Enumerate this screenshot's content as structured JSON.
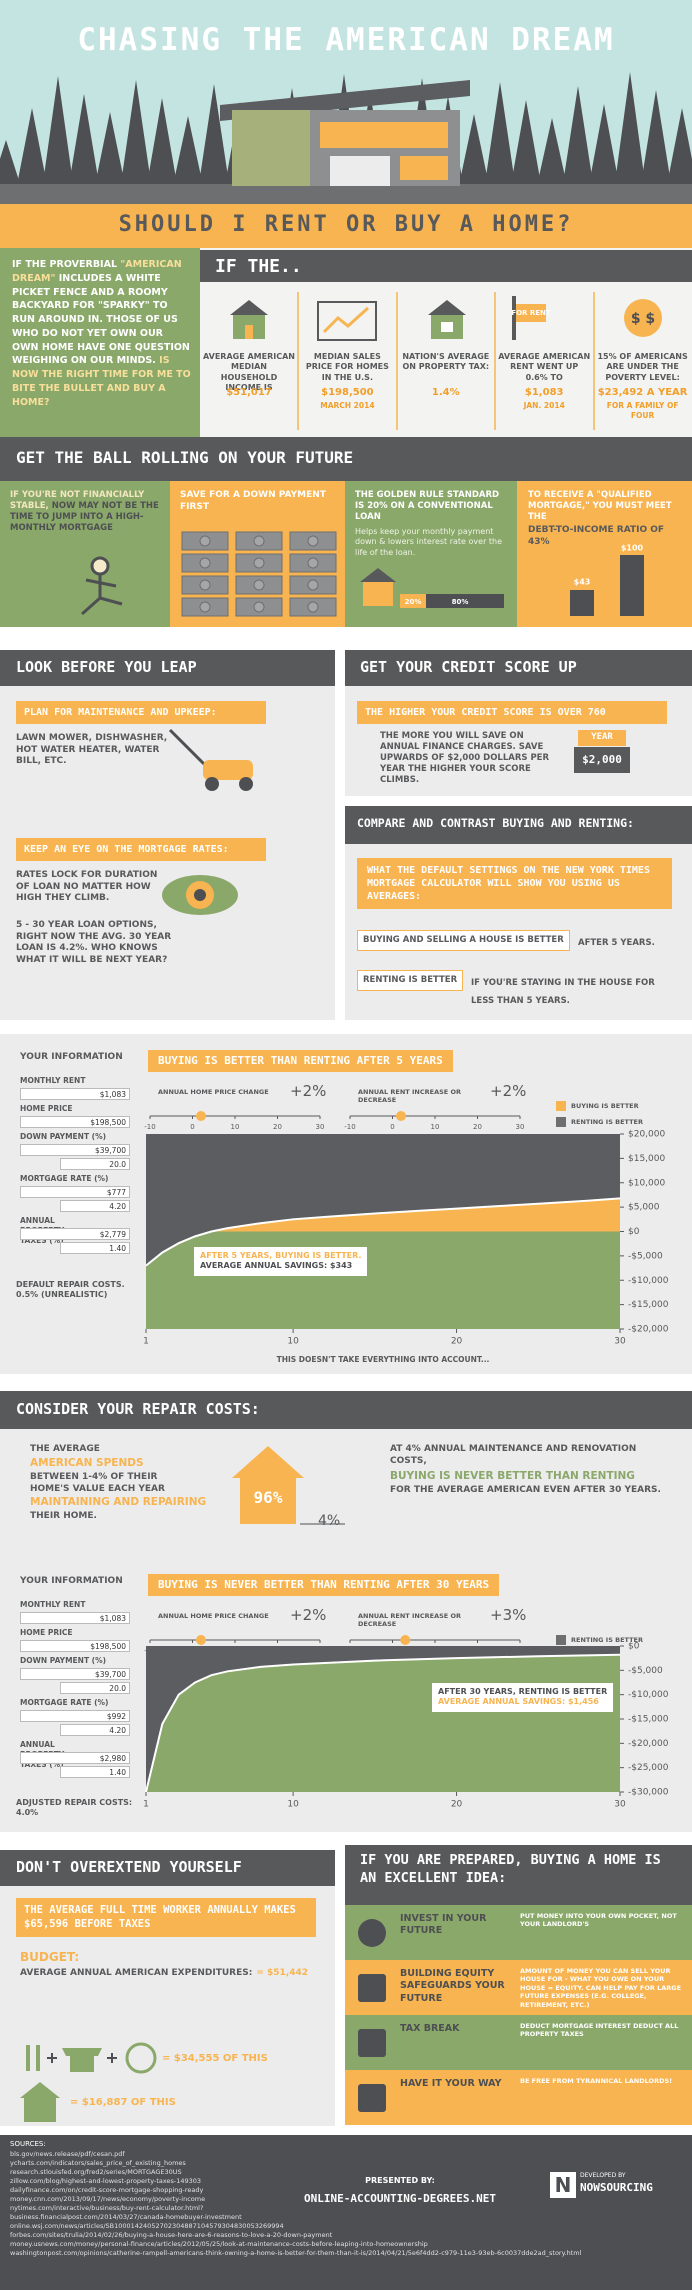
{
  "header": {
    "title": "CHASING THE AMERICAN DREAM",
    "question": "SHOULD I RENT OR BUY A HOME?"
  },
  "intro": {
    "lead": "IF THE PROVERBIAL ",
    "dream": "\"AMERICAN DREAM\"",
    "body": " INCLUDES A WHITE PICKET FENCE AND A ROOMY BACKYARD FOR \"SPARKY\" TO RUN AROUND IN. THOSE OF US WHO DO NOT YET OWN OUR OWN HOME HAVE ONE QUESTION WEIGHING ON OUR MINDS. ",
    "question": "IS NOW THE RIGHT TIME FOR ME TO BITE THE BULLET AND BUY A HOME?"
  },
  "if_the": {
    "title": "IF THE..",
    "rent_sign": "FOR RENT",
    "poverty_icon": "$ $",
    "stats": [
      {
        "label": "AVERAGE AMERICAN MEDIAN HOUSEHOLD INCOME IS",
        "value": "$51,017"
      },
      {
        "label": "MEDIAN SALES PRICE FOR HOMES IN THE U.S.",
        "value": "$198,500",
        "note": "MARCH 2014"
      },
      {
        "label": "NATION'S AVERAGE ON PROPERTY TAX:",
        "value": "1.4%"
      },
      {
        "label": "AVERAGE AMERICAN RENT WENT UP 0.6% TO",
        "value": "$1,083",
        "note": "JAN. 2014"
      },
      {
        "label": "15% OF AMERICANS ARE UNDER THE POVERTY LEVEL:",
        "value": "$23,492 A YEAR",
        "note": "FOR A FAMILY OF FOUR"
      }
    ]
  },
  "ball_rolling": {
    "title": "GET THE BALL ROLLING ON YOUR FUTURE",
    "stable_highlight": "IF YOU'RE NOT FINANCIALLY STABLE,",
    "stable_text": " NOW MAY NOT BE THE TIME TO JUMP INTO A HIGH-MONTHLY MORTGAGE",
    "save": "SAVE FOR A DOWN PAYMENT FIRST",
    "golden_rule": "THE GOLDEN RULE STANDARD IS 20% ON A CONVENTIONAL LOAN",
    "golden_note": "Helps keep your monthly payment down & lowers interest rate over the life of the loan.",
    "down_label": "20%",
    "loan_label": "80%",
    "qualified": "TO RECEIVE A \"QUALIFIED MORTGAGE,\" YOU MUST MEET THE",
    "ratio": "DEBT-TO-INCOME RATIO OF 43%",
    "debt_label": "$43",
    "income_label": "$100"
  },
  "leap": {
    "title": "LOOK BEFORE YOU LEAP",
    "maintenance_title": "PLAN FOR MAINTENANCE AND UPKEEP:",
    "maintenance_text": "LAWN MOWER, DISHWASHER, HOT WATER HEATER, WATER BILL, ETC.",
    "rates_title": "KEEP AN EYE ON THE MORTGAGE RATES:",
    "rates_text": "RATES LOCK FOR DURATION OF LOAN NO MATTER HOW HIGH THEY CLIMB.",
    "options_text": "5 - 30 YEAR LOAN OPTIONS, RIGHT NOW THE AVG. 30 YEAR LOAN IS 4.2%. WHO KNOWS WHAT IT WILL BE NEXT YEAR?"
  },
  "credit": {
    "title": "GET YOUR CREDIT SCORE UP",
    "banner": "THE HIGHER YOUR CREDIT SCORE IS OVER 760",
    "text": "THE MORE YOU WILL SAVE ON ANNUAL FINANCE CHARGES. SAVE UPWARDS OF $2,000 DOLLARS PER YEAR THE HIGHER YOUR SCORE CLIMBS.",
    "badge_tab": "YEAR",
    "badge_value": "$2,000"
  },
  "compare": {
    "title": "COMPARE AND CONTRAST BUYING AND RENTING:",
    "banner": "WHAT THE DEFAULT SETTINGS ON THE NEW YORK TIMES MORTGAGE CALCULATOR WILL SHOW YOU USING US AVERAGES:",
    "items": [
      {
        "tag": "BUYING AND SELLING A HOUSE IS BETTER",
        "text": "AFTER 5 YEARS."
      },
      {
        "tag": "RENTING IS BETTER",
        "text": "IF YOU'RE STAYING IN THE HOUSE FOR LESS THAN 5 YEARS."
      }
    ]
  },
  "chart_data": [
    {
      "type": "area",
      "title": "BUYING IS BETTER THAN RENTING AFTER 5 YEARS",
      "inputs_title": "YOUR INFORMATION",
      "inputs": [
        {
          "label": "MONTHLY RENT",
          "values": [
            "$1,083"
          ]
        },
        {
          "label": "HOME PRICE",
          "values": [
            "$198,500"
          ]
        },
        {
          "label": "DOWN PAYMENT (%)",
          "values": [
            "$39,700",
            "20.0"
          ]
        },
        {
          "label": "MORTGAGE RATE (%)",
          "values": [
            "$777",
            "4.20"
          ]
        },
        {
          "label": "ANNUAL PROPERTY TAXES (%)",
          "values": [
            "$2,779",
            "1.40"
          ]
        }
      ],
      "repair_note": "DEFAULT REPAIR COSTS. 0.5% (UNREALISTIC)",
      "sliders": [
        {
          "label": "ANNUAL HOME PRICE CHANGE",
          "value": 2,
          "value_label": "+2%",
          "ticks": [
            -10,
            0,
            10,
            20,
            30
          ]
        },
        {
          "label": "ANNUAL RENT INCREASE OR DECREASE",
          "value": 2,
          "value_label": "+2%",
          "ticks": [
            -10,
            0,
            10,
            20,
            30
          ]
        }
      ],
      "legend": [
        {
          "name": "BUYING IS BETTER",
          "color": "#f8b450"
        },
        {
          "name": "RENTING IS BETTER",
          "color": "#6e6f71"
        }
      ],
      "x": [
        1,
        2,
        3,
        4,
        5,
        6,
        8,
        10,
        12,
        15,
        18,
        20,
        22,
        25,
        28,
        30
      ],
      "values": [
        -7000,
        -4300,
        -2400,
        -1000,
        0,
        700,
        1700,
        2500,
        3000,
        3700,
        4300,
        4700,
        5100,
        5700,
        6300,
        6800
      ],
      "area_color": "#8ba86b",
      "line_color": "#ffffff",
      "xlim": [
        1,
        30
      ],
      "xticks": [
        1,
        10,
        20,
        30
      ],
      "ylim": [
        -20000,
        20000
      ],
      "yticks": [
        {
          "value": 20000,
          "label": "$20,000"
        },
        {
          "value": 15000,
          "label": "$15,000"
        },
        {
          "value": 10000,
          "label": "$10,000"
        },
        {
          "value": 5000,
          "label": "$5,000"
        },
        {
          "value": 0,
          "label": "$0"
        },
        {
          "value": -5000,
          "label": "-$5,000"
        },
        {
          "value": -10000,
          "label": "-$10,000"
        },
        {
          "value": -15000,
          "label": "-$15,000"
        },
        {
          "value": -20000,
          "label": "-$20,000"
        }
      ],
      "annotation": "AFTER 5 YEARS, BUYING IS BETTER.",
      "annotation_detail": "AVERAGE ANNUAL SAVINGS: $343",
      "footnote": "THIS DOESN'T TAKE EVERYTHING INTO ACCOUNT..."
    },
    {
      "type": "area",
      "title": "BUYING IS NEVER BETTER THAN RENTING AFTER 30 YEARS",
      "inputs_title": "YOUR INFORMATION",
      "inputs": [
        {
          "label": "MONTHLY RENT",
          "values": [
            "$1,083"
          ]
        },
        {
          "label": "HOME PRICE",
          "values": [
            "$198,500"
          ]
        },
        {
          "label": "DOWN PAYMENT (%)",
          "values": [
            "$39,700",
            "20.0"
          ]
        },
        {
          "label": "MORTGAGE RATE (%)",
          "values": [
            "$992",
            "4.20"
          ]
        },
        {
          "label": "ANNUAL PROPERTY TAXES (%)",
          "values": [
            "$2,980",
            "1.40"
          ]
        }
      ],
      "repair_note": "ADJUSTED REPAIR COSTS: 4.0%",
      "sliders": [
        {
          "label": "ANNUAL HOME PRICE CHANGE",
          "value": 2,
          "value_label": "+2%",
          "ticks": [
            -10,
            0,
            10,
            20,
            30
          ]
        },
        {
          "label": "ANNUAL RENT INCREASE OR DECREASE",
          "value": 3,
          "value_label": "+3%",
          "ticks": [
            -10,
            0,
            10,
            20,
            30
          ]
        }
      ],
      "legend": [
        {
          "name": "RENTING IS BETTER",
          "color": "#6e6f71"
        }
      ],
      "x": [
        1,
        2,
        3,
        4,
        5,
        6,
        8,
        10,
        15,
        20,
        25,
        30
      ],
      "values": [
        -30000,
        -16000,
        -10000,
        -7500,
        -6000,
        -5200,
        -4300,
        -3800,
        -3000,
        -2500,
        -2100,
        -1800
      ],
      "area_color": "#8ba86b",
      "line_color": "#ffffff",
      "xlim": [
        1,
        30
      ],
      "xticks": [
        1,
        10,
        20,
        30
      ],
      "ylim": [
        -30000,
        0
      ],
      "yticks": [
        {
          "value": 0,
          "label": "$0"
        },
        {
          "value": -5000,
          "label": "-$5,000"
        },
        {
          "value": -10000,
          "label": "-$10,000"
        },
        {
          "value": -15000,
          "label": "-$15,000"
        },
        {
          "value": -20000,
          "label": "-$20,000"
        },
        {
          "value": -25000,
          "label": "-$25,000"
        },
        {
          "value": -30000,
          "label": "-$30,000"
        }
      ],
      "annotation": "AFTER 30 YEARS, RENTING IS BETTER",
      "annotation_detail": "AVERAGE ANNUAL SAVINGS: $1,456"
    }
  ],
  "repair": {
    "title": "CONSIDER YOUR REPAIR COSTS:",
    "line1": "THE AVERAGE",
    "line2": "AMERICAN SPENDS",
    "line3": "BETWEEN 1-4% OF THEIR HOME'S VALUE EACH YEAR",
    "line4": "MAINTAINING AND REPAIRING",
    "line5": "THEIR HOME.",
    "house_label": "96%",
    "repair_label": "4%",
    "right1": "AT 4% ANNUAL MAINTENANCE AND RENOVATION COSTS,",
    "right2": "BUYING IS NEVER BETTER THAN RENTING",
    "right3": "FOR THE AVERAGE AMERICAN EVEN AFTER 30 YEARS."
  },
  "overextend": {
    "title": "DON'T OVEREXTEND YOURSELF",
    "banner": "THE AVERAGE FULL TIME WORKER ANNUALLY MAKES $65,596 BEFORE TAXES",
    "budget": "BUDGET:",
    "expenditures": "AVERAGE ANNUAL AMERICAN EXPENDITURES:",
    "expenditures_value": "= $51,442",
    "essentials_value": "= $34,555 OF THIS",
    "housing_value": "= $16,887 OF THIS"
  },
  "prepared": {
    "title": "IF YOU ARE PREPARED, BUYING A HOME IS AN EXCELLENT IDEA:",
    "rows": [
      {
        "title": "INVEST IN YOUR FUTURE",
        "text": "PUT MONEY INTO YOUR OWN POCKET, NOT YOUR LANDLORD'S"
      },
      {
        "title": "BUILDING EQUITY SAFEGUARDS YOUR FUTURE",
        "text": "AMOUNT OF MONEY YOU CAN SELL YOUR HOUSE FOR - WHAT YOU OWE ON YOUR HOUSE = EQUITY. CAN HELP PAY FOR LARGE FUTURE EXPENSES (E.G. COLLEGE, RETIREMENT, ETC.)"
      },
      {
        "title": "TAX BREAK",
        "text": "DEDUCT MORTGAGE INTEREST DEDUCT ALL PROPERTY TAXES"
      },
      {
        "title": "HAVE IT YOUR WAY",
        "text": "BE FREE FROM TYRANNICAL LANDLORDS!"
      }
    ]
  },
  "footer": {
    "sources_title": "SOURCES:",
    "sources": [
      "bls.gov/news.release/pdf/cesan.pdf",
      "ycharts.com/indicators/sales_price_of_existing_homes",
      "research.stlouisfed.org/fred2/series/MORTGAGE30US",
      "zillow.com/blog/highest-and-lowest-property-taxes-149303",
      "dailyfinance.com/on/credit-score-mortgage-shopping-ready",
      "money.cnn.com/2013/09/17/news/economy/poverty-income",
      "nytimes.com/interactive/business/buy-rent-calculator.html?",
      "business.financialpost.com/2014/03/27/canada-homebuyer-investment",
      "online.wsj.com/news/articles/SB10001424052702304887104579304830053269994",
      "forbes.com/sites/trulia/2014/02/26/buying-a-house-here-are-6-reasons-to-love-a-20-down-payment",
      "money.usnews.com/money/personal-finance/articles/2012/05/25/look-at-maintenance-costs-before-leaping-into-homeownership",
      "washingtonpost.com/opinions/catherine-rampell-americans-think-owning-a-home-is-better-for-them-than-it-is/2014/04/21/5e6f4dd2-c979-11e3-93eb-6c0037dde2ad_story.html"
    ],
    "presented_by": "PRESENTED BY:",
    "site": "ONLINE-ACCOUNTING-DEGREES.NET",
    "developed_by": "DEVELOPED BY",
    "developer": "NOWSOURCING",
    "developer_initial": "N"
  }
}
